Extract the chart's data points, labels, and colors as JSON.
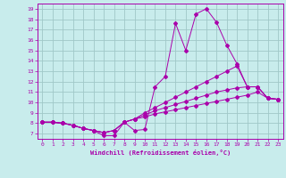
{
  "xlabel": "Windchill (Refroidissement éolien,°C)",
  "background_color": "#c8ecec",
  "grid_color": "#a0c8c8",
  "line_color": "#aa00aa",
  "xlim": [
    -0.5,
    23.5
  ],
  "ylim": [
    6.5,
    19.5
  ],
  "xticks": [
    0,
    1,
    2,
    3,
    4,
    5,
    6,
    7,
    8,
    9,
    10,
    11,
    12,
    13,
    14,
    15,
    16,
    17,
    18,
    19,
    20,
    21,
    22,
    23
  ],
  "yticks": [
    7,
    8,
    9,
    10,
    11,
    12,
    13,
    14,
    15,
    16,
    17,
    18,
    19
  ],
  "series": [
    {
      "x": [
        0,
        1,
        2,
        3,
        4,
        5,
        6,
        7,
        8,
        9,
        10,
        11,
        12,
        13,
        14,
        15,
        16,
        17,
        18,
        19,
        20,
        21,
        22,
        23
      ],
      "y": [
        8.1,
        8.1,
        8.0,
        7.8,
        7.5,
        7.3,
        6.8,
        6.8,
        8.1,
        7.3,
        7.4,
        11.5,
        12.5,
        17.6,
        15.0,
        18.5,
        19.0,
        17.7,
        15.5,
        13.7,
        11.5,
        11.5,
        10.4,
        10.3
      ]
    },
    {
      "x": [
        0,
        1,
        2,
        3,
        4,
        5,
        6,
        7,
        8,
        9,
        10,
        11,
        12,
        13,
        14,
        15,
        16,
        17,
        18,
        19,
        20,
        21,
        22,
        23
      ],
      "y": [
        8.1,
        8.1,
        8.0,
        7.8,
        7.5,
        7.3,
        7.1,
        7.3,
        8.1,
        8.4,
        9.0,
        9.5,
        10.0,
        10.5,
        11.0,
        11.5,
        12.0,
        12.5,
        13.0,
        13.5,
        11.5,
        11.5,
        10.4,
        10.3
      ]
    },
    {
      "x": [
        0,
        1,
        2,
        3,
        4,
        5,
        6,
        7,
        8,
        9,
        10,
        11,
        12,
        13,
        14,
        15,
        16,
        17,
        18,
        19,
        20,
        21,
        22,
        23
      ],
      "y": [
        8.1,
        8.1,
        8.0,
        7.8,
        7.5,
        7.3,
        7.1,
        7.3,
        8.1,
        8.4,
        8.8,
        9.2,
        9.5,
        9.8,
        10.1,
        10.4,
        10.7,
        11.0,
        11.2,
        11.4,
        11.5,
        11.5,
        10.4,
        10.3
      ]
    },
    {
      "x": [
        0,
        1,
        2,
        3,
        4,
        5,
        6,
        7,
        8,
        9,
        10,
        11,
        12,
        13,
        14,
        15,
        16,
        17,
        18,
        19,
        20,
        21,
        22,
        23
      ],
      "y": [
        8.1,
        8.1,
        8.0,
        7.8,
        7.5,
        7.3,
        7.1,
        7.3,
        8.1,
        8.4,
        8.6,
        8.9,
        9.1,
        9.3,
        9.5,
        9.7,
        9.9,
        10.1,
        10.3,
        10.5,
        10.7,
        11.0,
        10.4,
        10.3
      ]
    }
  ]
}
